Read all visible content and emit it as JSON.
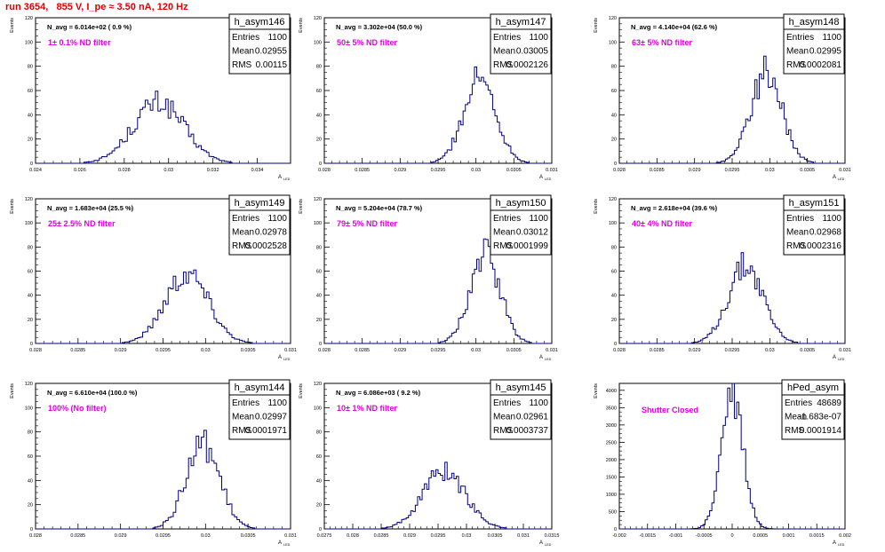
{
  "run_title": "run 3654,   855 V, I_pe ≈ 3.50 nA, 120 Hz",
  "y_axis_label": "Events",
  "x_axis_label": "A",
  "x_axis_label_sub": "LED",
  "stats_labels": {
    "entries": "Entries",
    "mean": "Mean",
    "rms": "RMS"
  },
  "colors": {
    "histogram": "#000080",
    "filter_text": "#e000e0",
    "title": "#e00000",
    "frame": "#000000"
  },
  "chart_data": [
    {
      "type": "histogram",
      "name": "h_asym146",
      "navg": "N_avg = 6.014e+02 ( 0.9 %)",
      "filter": "1± 0.1% ND filter",
      "stats": {
        "entries": "1100",
        "mean": "0.02955",
        "rms": "0.00115"
      },
      "xlim": [
        0.024,
        0.0355
      ],
      "ylim": [
        0,
        120
      ],
      "xticks": [
        0.024,
        0.026,
        0.028,
        0.03,
        0.032,
        0.034
      ],
      "xticklabels": [
        "0.024",
        "0.026",
        "0.028",
        "0.03",
        "0.032",
        "0.034"
      ],
      "yticks": [
        0,
        20,
        40,
        60,
        80,
        100,
        120
      ],
      "yticklabels": [
        "0",
        "20",
        "40",
        "60",
        "80",
        "100",
        "120"
      ],
      "mean": 0.02955,
      "rms": 0.00115,
      "peak": 50
    },
    {
      "type": "histogram",
      "name": "h_asym147",
      "navg": "N_avg = 3.302e+04 (50.0 %)",
      "filter": "50± 5% ND filter",
      "stats": {
        "entries": "1100",
        "mean": "0.03005",
        "rms": "0.0002126"
      },
      "xlim": [
        0.028,
        0.031
      ],
      "ylim": [
        0,
        120
      ],
      "xticks": [
        0.028,
        0.0285,
        0.029,
        0.0295,
        0.03,
        0.0305,
        0.031
      ],
      "xticklabels": [
        "0.028",
        "0.0285",
        "0.029",
        "0.0295",
        "0.03",
        "0.0305",
        "0.031"
      ],
      "yticks": [
        0,
        20,
        40,
        60,
        80,
        100,
        120
      ],
      "yticklabels": [
        "0",
        "20",
        "40",
        "60",
        "80",
        "100",
        "120"
      ],
      "mean": 0.03005,
      "rms": 0.0002126,
      "peak": 70
    },
    {
      "type": "histogram",
      "name": "h_asym148",
      "navg": "N_avg = 4.140e+04 (62.6 %)",
      "filter": "63± 5% ND filter",
      "stats": {
        "entries": "1100",
        "mean": "0.02995",
        "rms": "0.0002081"
      },
      "xlim": [
        0.028,
        0.031
      ],
      "ylim": [
        0,
        120
      ],
      "xticks": [
        0.028,
        0.0285,
        0.029,
        0.0295,
        0.03,
        0.0305,
        0.031
      ],
      "xticklabels": [
        "0.028",
        "0.0285",
        "0.029",
        "0.0295",
        "0.03",
        "0.0305",
        "0.031"
      ],
      "yticks": [
        0,
        20,
        40,
        60,
        80,
        100,
        120
      ],
      "yticklabels": [
        "0",
        "20",
        "40",
        "60",
        "80",
        "100",
        "120"
      ],
      "mean": 0.02995,
      "rms": 0.0002081,
      "peak": 75
    },
    {
      "type": "histogram",
      "name": "h_asym149",
      "navg": "N_avg = 1.683e+04 (25.5 %)",
      "filter": "25± 2.5% ND filter",
      "stats": {
        "entries": "1100",
        "mean": "0.02978",
        "rms": "0.0002528"
      },
      "xlim": [
        0.028,
        0.031
      ],
      "ylim": [
        0,
        120
      ],
      "xticks": [
        0.028,
        0.0285,
        0.029,
        0.0295,
        0.03,
        0.0305,
        0.031
      ],
      "xticklabels": [
        "0.028",
        "0.0285",
        "0.029",
        "0.0295",
        "0.03",
        "0.0305",
        "0.031"
      ],
      "yticks": [
        0,
        20,
        40,
        60,
        80,
        100,
        120
      ],
      "yticklabels": [
        "0",
        "20",
        "40",
        "60",
        "80",
        "100",
        "120"
      ],
      "mean": 0.02978,
      "rms": 0.0002528,
      "peak": 58
    },
    {
      "type": "histogram",
      "name": "h_asym150",
      "navg": "N_avg = 5.204e+04 (78.7 %)",
      "filter": "79± 5% ND filter",
      "stats": {
        "entries": "1100",
        "mean": "0.03012",
        "rms": "0.0001999"
      },
      "xlim": [
        0.028,
        0.031
      ],
      "ylim": [
        0,
        120
      ],
      "xticks": [
        0.028,
        0.0285,
        0.029,
        0.0295,
        0.03,
        0.0305,
        0.031
      ],
      "xticklabels": [
        "0.028",
        "0.0285",
        "0.029",
        "0.0295",
        "0.03",
        "0.0305",
        "0.031"
      ],
      "yticks": [
        0,
        20,
        40,
        60,
        80,
        100,
        120
      ],
      "yticklabels": [
        "0",
        "20",
        "40",
        "60",
        "80",
        "100",
        "120"
      ],
      "mean": 0.03012,
      "rms": 0.0001999,
      "peak": 74
    },
    {
      "type": "histogram",
      "name": "h_asym151",
      "navg": "N_avg = 2.618e+04 (39.6 %)",
      "filter": "40± 4% ND filter",
      "stats": {
        "entries": "1100",
        "mean": "0.02968",
        "rms": "0.0002316"
      },
      "xlim": [
        0.028,
        0.031
      ],
      "ylim": [
        0,
        120
      ],
      "xticks": [
        0.028,
        0.0285,
        0.029,
        0.0295,
        0.03,
        0.0305,
        0.031
      ],
      "xticklabels": [
        "0.028",
        "0.0285",
        "0.029",
        "0.0295",
        "0.03",
        "0.0305",
        "0.031"
      ],
      "yticks": [
        0,
        20,
        40,
        60,
        80,
        100,
        120
      ],
      "yticklabels": [
        "0",
        "20",
        "40",
        "60",
        "80",
        "100",
        "120"
      ],
      "mean": 0.02968,
      "rms": 0.0002316,
      "peak": 64
    },
    {
      "type": "histogram",
      "name": "h_asym144",
      "navg": "N_avg = 6.610e+04 (100.0 %)",
      "filter": "100% (No filter)",
      "stats": {
        "entries": "1100",
        "mean": "0.02997",
        "rms": "0.0001971"
      },
      "xlim": [
        0.028,
        0.031
      ],
      "ylim": [
        0,
        120
      ],
      "xticks": [
        0.028,
        0.0285,
        0.029,
        0.0295,
        0.03,
        0.0305,
        0.031
      ],
      "xticklabels": [
        "0.028",
        "0.0285",
        "0.029",
        "0.0295",
        "0.03",
        "0.0305",
        "0.031"
      ],
      "yticks": [
        0,
        20,
        40,
        60,
        80,
        100,
        120
      ],
      "yticklabels": [
        "0",
        "20",
        "40",
        "60",
        "80",
        "100",
        "120"
      ],
      "mean": 0.02997,
      "rms": 0.0001971,
      "peak": 70
    },
    {
      "type": "histogram",
      "name": "h_asym145",
      "navg": "N_avg = 6.086e+03 ( 9.2 %)",
      "filter": "10± 1% ND filter",
      "stats": {
        "entries": "1100",
        "mean": "0.02961",
        "rms": "0.0003737"
      },
      "xlim": [
        0.0275,
        0.0315
      ],
      "ylim": [
        0,
        120
      ],
      "xticks": [
        0.0275,
        0.028,
        0.0285,
        0.029,
        0.0295,
        0.03,
        0.0305,
        0.031,
        0.0315
      ],
      "xticklabels": [
        "0.0275",
        "0.028",
        "0.0285",
        "0.029",
        "0.0295",
        "0.03",
        "0.0305",
        "0.031",
        "0.0315"
      ],
      "yticks": [
        0,
        20,
        40,
        60,
        80,
        100,
        120
      ],
      "yticklabels": [
        "0",
        "20",
        "40",
        "60",
        "80",
        "100",
        "120"
      ],
      "mean": 0.02961,
      "rms": 0.0003737,
      "peak": 48
    },
    {
      "type": "histogram",
      "name": "hPed_asym",
      "navg": "",
      "filter": "Shutter Closed",
      "stats": {
        "entries": "48689",
        "mean": "-1.683e-07",
        "rms": "0.0001914"
      },
      "xlim": [
        -0.002,
        0.002
      ],
      "ylim": [
        0,
        4200
      ],
      "xticks": [
        -0.002,
        -0.0015,
        -0.001,
        -0.0005,
        0,
        0.0005,
        0.001,
        0.0015,
        0.002
      ],
      "xticklabels": [
        "-0.002",
        "-0.0015",
        "-0.001",
        "-0.0005",
        "0",
        "0.0005",
        "0.001",
        "0.0015",
        "0.002"
      ],
      "yticks": [
        0,
        500,
        1000,
        1500,
        2000,
        2500,
        3000,
        3500,
        4000
      ],
      "yticklabels": [
        "0",
        "500",
        "1000",
        "1500",
        "2000",
        "2500",
        "3000",
        "3500",
        "4000"
      ],
      "mean": 0.0,
      "rms": 0.0001914,
      "peak": 3950
    }
  ]
}
